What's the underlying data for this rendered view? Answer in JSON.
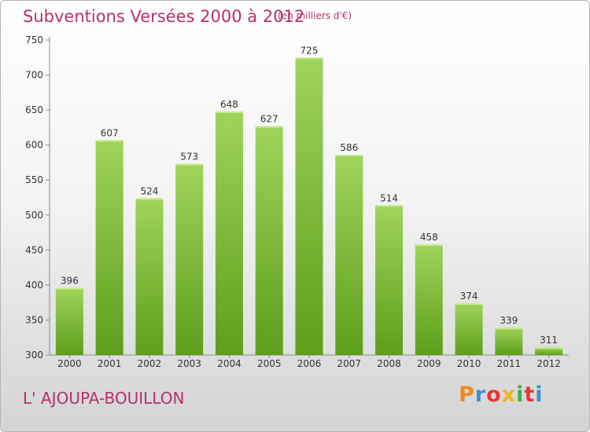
{
  "header": {
    "title": "Subventions Versées 2000 à 2012",
    "unit_note": "(en milliers d'€)"
  },
  "footer": {
    "commune": "L' AJOUPA-BOUILLON",
    "logo_letters": [
      "P",
      "r",
      "o",
      "x",
      "i",
      "t",
      "i"
    ],
    "logo_colors": [
      "#f08a1c",
      "#3a8fd8",
      "#e53935",
      "#f2b41c",
      "#3fae49",
      "#e53935",
      "#3a8fd8"
    ]
  },
  "colors": {
    "bar_top": "#9fd45a",
    "bar_bottom": "#5e9e1b",
    "axis": "#888888",
    "text": "#333333"
  },
  "chart_data": {
    "type": "bar",
    "title": "Subventions Versées 2000 à 2012",
    "ylabel": "",
    "xlabel": "",
    "categories": [
      "2000",
      "2001",
      "2002",
      "2003",
      "2004",
      "2005",
      "2006",
      "2007",
      "2008",
      "2009",
      "2010",
      "2011",
      "2012"
    ],
    "values": [
      396,
      607,
      524,
      573,
      648,
      627,
      725,
      586,
      514,
      458,
      374,
      339,
      311
    ],
    "ylim": [
      300,
      750
    ],
    "yticks": [
      300,
      350,
      400,
      450,
      500,
      550,
      600,
      650,
      700,
      750
    ],
    "grid": false,
    "legend": "none"
  }
}
